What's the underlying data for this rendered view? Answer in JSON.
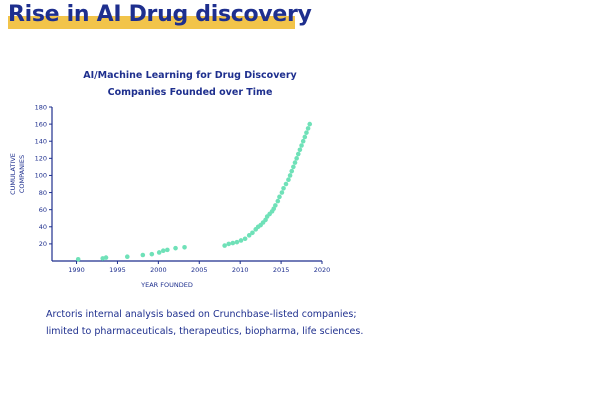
{
  "header": {
    "title": "Rise in AI Drug discovery"
  },
  "chart_data": {
    "type": "scatter",
    "title_line1": "AI/Machine Learning for Drug Discovery",
    "title_line2": "Companies Founded over Time",
    "xlabel": "YEAR FOUNDED",
    "ylabel_line1": "CUMULATIVE",
    "ylabel_line2": "COMPANIES",
    "xlim": [
      1987,
      2020
    ],
    "ylim": [
      0,
      180
    ],
    "xticks": [
      1990,
      1995,
      2000,
      2005,
      2010,
      2015,
      2020
    ],
    "yticks": [
      20,
      40,
      60,
      80,
      100,
      120,
      140,
      160,
      180
    ],
    "grid": false,
    "marker_color": "#6fe1b8",
    "axis_color": "#1e2f8e",
    "x": [
      1990.2,
      1993.2,
      1993.6,
      1996.2,
      1998.1,
      1999.2,
      2000.1,
      2000.6,
      2001.1,
      2002.1,
      2003.2,
      2008.1,
      2008.6,
      2009.1,
      2009.6,
      2010.1,
      2010.6,
      2011.1,
      2011.5,
      2011.9,
      2012.2,
      2012.5,
      2012.8,
      2013.1,
      2013.3,
      2013.6,
      2013.9,
      2014.1,
      2014.3,
      2014.6,
      2014.8,
      2015.1,
      2015.3,
      2015.6,
      2015.9,
      2016.1,
      2016.3,
      2016.5,
      2016.7,
      2016.9,
      2017.1,
      2017.3,
      2017.5,
      2017.7,
      2017.9,
      2018.1,
      2018.3,
      2018.5
    ],
    "y": [
      2,
      3,
      4,
      5,
      7,
      8,
      10,
      12,
      13,
      15,
      16,
      18,
      20,
      21,
      22,
      24,
      26,
      30,
      33,
      37,
      40,
      42,
      45,
      48,
      52,
      55,
      58,
      61,
      65,
      70,
      75,
      80,
      85,
      90,
      95,
      100,
      105,
      110,
      115,
      120,
      125,
      130,
      135,
      140,
      145,
      150,
      155,
      160
    ]
  },
  "caption": {
    "line1": "Arctoris internal analysis based on Crunchbase-listed companies;",
    "line2": "limited to pharmaceuticals, therapeutics, biopharma, life sciences."
  }
}
